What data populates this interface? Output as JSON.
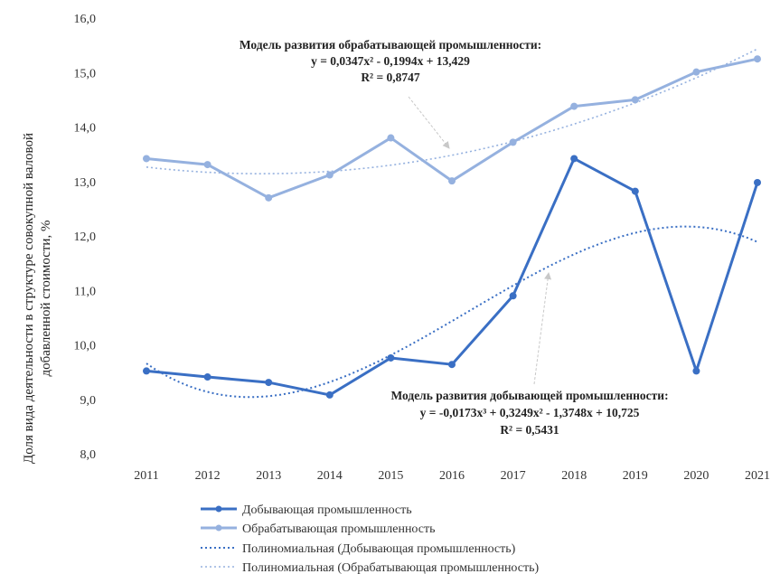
{
  "chart_data": {
    "type": "line",
    "ylabel_lines": [
      "Доля вида деятельности в структуре совокупной валовой",
      "добавленной стоимости, %"
    ],
    "categories": [
      "2011",
      "2012",
      "2013",
      "2014",
      "2015",
      "2016",
      "2017",
      "2018",
      "2019",
      "2020",
      "2021"
    ],
    "ylim": [
      8.0,
      16.0
    ],
    "yticks": [
      "8,0",
      "9,0",
      "10,0",
      "11,0",
      "12,0",
      "13,0",
      "14,0",
      "15,0",
      "16,0"
    ],
    "grid": false,
    "legend_position": "bottom-left",
    "series": [
      {
        "name": "Добывающая промышленность",
        "values": [
          9.52,
          9.41,
          9.31,
          9.08,
          9.76,
          9.64,
          10.9,
          13.42,
          12.82,
          9.52,
          12.98
        ],
        "color": "#3A6FC4",
        "style": "solid-markers"
      },
      {
        "name": "Обрабатывающая промышленность",
        "values": [
          13.42,
          13.31,
          12.7,
          13.12,
          13.8,
          13.01,
          13.72,
          14.38,
          14.5,
          15.01,
          15.25
        ],
        "color": "#95B1DF",
        "style": "solid-markers"
      },
      {
        "name": "Полиномиальная (Добывающая промышленность)",
        "trend_of": 0,
        "color": "#3A6FC4",
        "style": "dotted",
        "coefficients": [
          -0.0173,
          0.3249,
          -1.3748,
          10.725
        ]
      },
      {
        "name": "Полиномиальная (Обрабатывающая промышленность)",
        "trend_of": 1,
        "color": "#95B1DF",
        "style": "dotted",
        "coefficients": [
          0.0347,
          -0.1994,
          13.429
        ]
      }
    ],
    "annotations": [
      {
        "lines": [
          "Модель развития обрабатывающей промышленности:",
          "y = 0,0347x² - 0,1994x + 13,429",
          "R² = 0,8747"
        ]
      },
      {
        "lines": [
          "Модель развития добывающей промышленности:",
          "y = -0,0173x³ + 0,3249x² - 1,3748x + 10,725",
          "R² = 0,5431"
        ]
      }
    ]
  }
}
